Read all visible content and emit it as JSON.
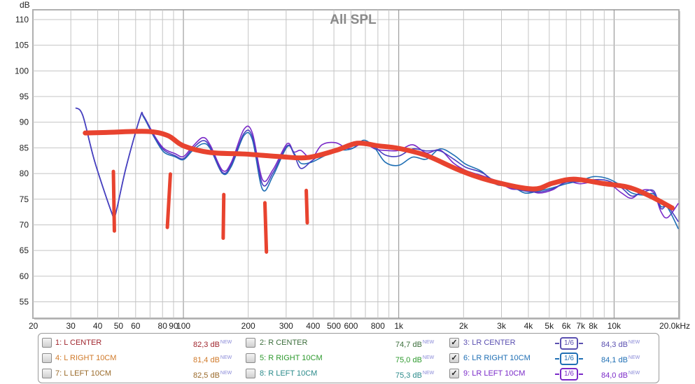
{
  "chart_data": {
    "type": "line",
    "title": "All SPL",
    "ylabel": "dB",
    "xlabel": "",
    "x_scale": "log",
    "xlim": [
      20,
      20000
    ],
    "ylim": [
      51.8,
      111.9
    ],
    "grid": true,
    "y_ticks": [
      "110",
      "105",
      "100",
      "95",
      "90",
      "85",
      "80",
      "75",
      "70",
      "65",
      "60",
      "55"
    ],
    "y_tick_values": [
      110,
      105,
      100,
      95,
      90,
      85,
      80,
      75,
      70,
      65,
      60,
      55
    ],
    "x_ticks": [
      {
        "f": 20,
        "label": "20"
      },
      {
        "f": 30,
        "label": "30"
      },
      {
        "f": 40,
        "label": "40"
      },
      {
        "f": 50,
        "label": "50"
      },
      {
        "f": 60,
        "label": "60"
      },
      {
        "f": 80,
        "label": "80"
      },
      {
        "f": 90,
        "label": "90"
      },
      {
        "f": 100,
        "label": "100"
      },
      {
        "f": 200,
        "label": "200"
      },
      {
        "f": 300,
        "label": "300"
      },
      {
        "f": 400,
        "label": "400"
      },
      {
        "f": 500,
        "label": "500"
      },
      {
        "f": 600,
        "label": "600"
      },
      {
        "f": 800,
        "label": "800"
      },
      {
        "f": 1000,
        "label": "1k"
      },
      {
        "f": 2000,
        "label": "2k"
      },
      {
        "f": 3000,
        "label": "3k"
      },
      {
        "f": 4000,
        "label": "4k"
      },
      {
        "f": 5000,
        "label": "5k"
      },
      {
        "f": 6000,
        "label": "6k"
      },
      {
        "f": 7000,
        "label": "7k"
      },
      {
        "f": 8000,
        "label": "8k"
      },
      {
        "f": 10000,
        "label": "10k"
      },
      {
        "f": 20000,
        "label": "20,0kHz"
      }
    ],
    "freq": [
      31.6,
      34.1,
      38.7,
      46.6,
      48.2,
      54.1,
      62.9,
      65.3,
      73.3,
      81,
      91.2,
      100,
      110,
      123,
      133,
      152,
      167,
      191,
      209,
      233,
      261,
      303,
      326,
      351,
      393,
      440,
      510,
      572,
      617,
      690,
      773,
      866,
      1000,
      1160,
      1345,
      1555,
      1800,
      2050,
      2430,
      2830,
      3330,
      3850,
      4460,
      5170,
      6000,
      6960,
      8070,
      9350,
      10840,
      12100,
      13700,
      15300,
      16500,
      17700,
      19900
    ],
    "series": [
      {
        "name": "3: LR CENTER",
        "color": "#4a3fc0",
        "values": [
          92.8,
          91.3,
          82.4,
          72.2,
          71.8,
          81.1,
          90.9,
          91.2,
          87.2,
          84.6,
          83.5,
          82.9,
          84.8,
          86.4,
          85.2,
          80.2,
          81.8,
          87.8,
          87.2,
          77.9,
          80.2,
          85.4,
          83.8,
          81,
          82.4,
          83.8,
          84.6,
          84.9,
          85.4,
          86.2,
          85.2,
          83.6,
          83.4,
          84.8,
          84.4,
          84.4,
          82.8,
          81.2,
          80.2,
          78.3,
          77.2,
          76.6,
          76.4,
          77,
          78.3,
          78.4,
          78.8,
          78.6,
          77.2,
          75.6,
          76.4,
          76.6,
          73.2,
          73.6,
          70.6
        ]
      },
      {
        "name": "6: LR RIGHT 10CM",
        "color": "#1f6fb4",
        "values": [
          92.8,
          91.3,
          82.4,
          72.2,
          71.8,
          81.1,
          90.9,
          91.0,
          87.0,
          84.2,
          83.3,
          82.7,
          84.4,
          85.8,
          84.9,
          80.0,
          81.4,
          87.4,
          86.6,
          76.9,
          79.6,
          85.2,
          84.0,
          82.0,
          82.2,
          83.2,
          84.5,
          84.6,
          85.0,
          86.5,
          85.0,
          82.2,
          81.6,
          83.2,
          82.8,
          84.8,
          83.6,
          81.8,
          80.4,
          77.9,
          77.6,
          76.2,
          76.6,
          77.2,
          78.0,
          78.6,
          79.4,
          79.0,
          77.6,
          76.2,
          75.8,
          76.0,
          73.6,
          73.4,
          69.2
        ]
      },
      {
        "name": "9: LR LEFT 10CM",
        "color": "#7a2ac8",
        "values": [
          92.8,
          91.3,
          82.4,
          72.2,
          71.8,
          81.1,
          90.9,
          91.2,
          87.4,
          84.9,
          83.9,
          83.3,
          85.2,
          87.0,
          85.6,
          80.6,
          82.2,
          88.6,
          87.9,
          78.8,
          80.8,
          85.8,
          84.2,
          84.5,
          83.0,
          85.6,
          86.0,
          84.9,
          85.0,
          86.0,
          84.8,
          84.5,
          84.5,
          85.6,
          84.0,
          84.6,
          82.0,
          80.6,
          79.6,
          78.6,
          77.0,
          77.0,
          76.2,
          76.8,
          78.4,
          78.0,
          78.4,
          78.2,
          76.2,
          75.2,
          76.8,
          76.2,
          72.6,
          71.4,
          74.2
        ]
      }
    ],
    "annotation": {
      "color": "#e8432f",
      "curve": [
        [
          35,
          87.9
        ],
        [
          43.8,
          88.0
        ],
        [
          67.6,
          88.2
        ],
        [
          84.5,
          87.4
        ],
        [
          100,
          85.4
        ],
        [
          133,
          84.1
        ],
        [
          193,
          83.8
        ],
        [
          280,
          83.3
        ],
        [
          376,
          83.1
        ],
        [
          510,
          84.5
        ],
        [
          640,
          85.9
        ],
        [
          800,
          85.4
        ],
        [
          1000,
          84.9
        ],
        [
          1345,
          83.5
        ],
        [
          1900,
          80.7
        ],
        [
          2660,
          78.6
        ],
        [
          4170,
          77.0
        ],
        [
          5170,
          78.1
        ],
        [
          6480,
          78.9
        ],
        [
          8760,
          78.1
        ],
        [
          11700,
          77.3
        ],
        [
          14700,
          75.6
        ],
        [
          18600,
          73.3
        ]
      ],
      "marks": [
        [
          [
            47.3,
            80.4
          ],
          [
            47.8,
            68.8
          ]
        ],
        [
          [
            87.0,
            79.9
          ],
          [
            84.2,
            69.5
          ]
        ],
        [
          [
            154,
            75.9
          ],
          [
            153,
            67.4
          ]
        ],
        [
          [
            239,
            74.3
          ],
          [
            243,
            64.7
          ]
        ],
        [
          [
            372,
            76.7
          ],
          [
            376,
            70.4
          ]
        ]
      ]
    }
  },
  "legend": {
    "rows": [
      [
        {
          "label": "1: L CENTER",
          "value": "82,3 dB",
          "checked": false
        },
        {
          "label": "2: R CENTER",
          "value": "74,7 dB",
          "checked": false
        },
        {
          "label": "3: LR CENTER",
          "value": "84,3 dB",
          "checked": true,
          "smoothing": "1/6"
        }
      ],
      [
        {
          "label": "4: L RIGHT 10CM",
          "value": "81,4 dB",
          "checked": false
        },
        {
          "label": "5: R RIGHT 10CM",
          "value": "75,0 dB",
          "checked": false
        },
        {
          "label": "6: LR RIGHT 10CM",
          "value": "84,1 dB",
          "checked": true,
          "smoothing": "1/6"
        }
      ],
      [
        {
          "label": "7: L LEFT 10CM",
          "value": "82,5 dB",
          "checked": false
        },
        {
          "label": "8: R LEFT 10CM",
          "value": "75,3 dB",
          "checked": false
        },
        {
          "label": "9: LR LEFT 10CM",
          "value": "84,0 dB",
          "checked": true,
          "smoothing": "1/6"
        }
      ]
    ],
    "new_tag": "NEW",
    "check_mark": "✓",
    "colors": [
      [
        "#a0262e",
        "#3c6e3c",
        "#5a4fb0"
      ],
      [
        "#d07a2a",
        "#2e9a2e",
        "#1f6fb4"
      ],
      [
        "#9a6a2a",
        "#2a8a8a",
        "#7a2ac8"
      ]
    ]
  }
}
